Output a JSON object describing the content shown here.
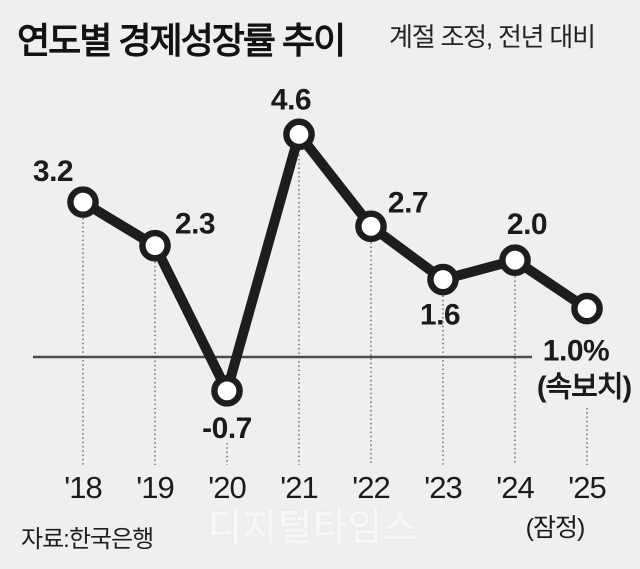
{
  "header": {
    "title": "연도별 경제성장률 추이",
    "subtitle": "계절 조정, 전년 대비"
  },
  "chart_data": {
    "type": "line",
    "title": "연도별 경제성장률 추이",
    "subtitle": "계절 조정, 전년 대비",
    "categories": [
      "'18",
      "'19",
      "'20",
      "'21",
      "'22",
      "'23",
      "'24",
      "'25"
    ],
    "values": [
      3.2,
      2.3,
      -0.7,
      4.6,
      2.7,
      1.6,
      2.0,
      1.0
    ],
    "point_labels": [
      "3.2",
      "2.3",
      "-0.7",
      "4.6",
      "2.7",
      "1.6",
      "2.0",
      "1.0%"
    ],
    "last_point_sublabel": "(속보치)",
    "x_sublabels": {
      "6": "(잠정)"
    },
    "unit": "%",
    "ylim": [
      -1,
      5
    ],
    "zero_baseline": true,
    "grid": "dotted-vertical-droplines",
    "legend": "none",
    "colors": {
      "line": "#1d1d1d",
      "marker_fill": "#ffffff",
      "dotted_line": "#8a8a8a",
      "zero_line": "#4b4b4b",
      "text": "#1b1b1b",
      "background": "#efefee"
    }
  },
  "footer": {
    "source": "자료:한국은행"
  },
  "watermark": "디지털타임스"
}
